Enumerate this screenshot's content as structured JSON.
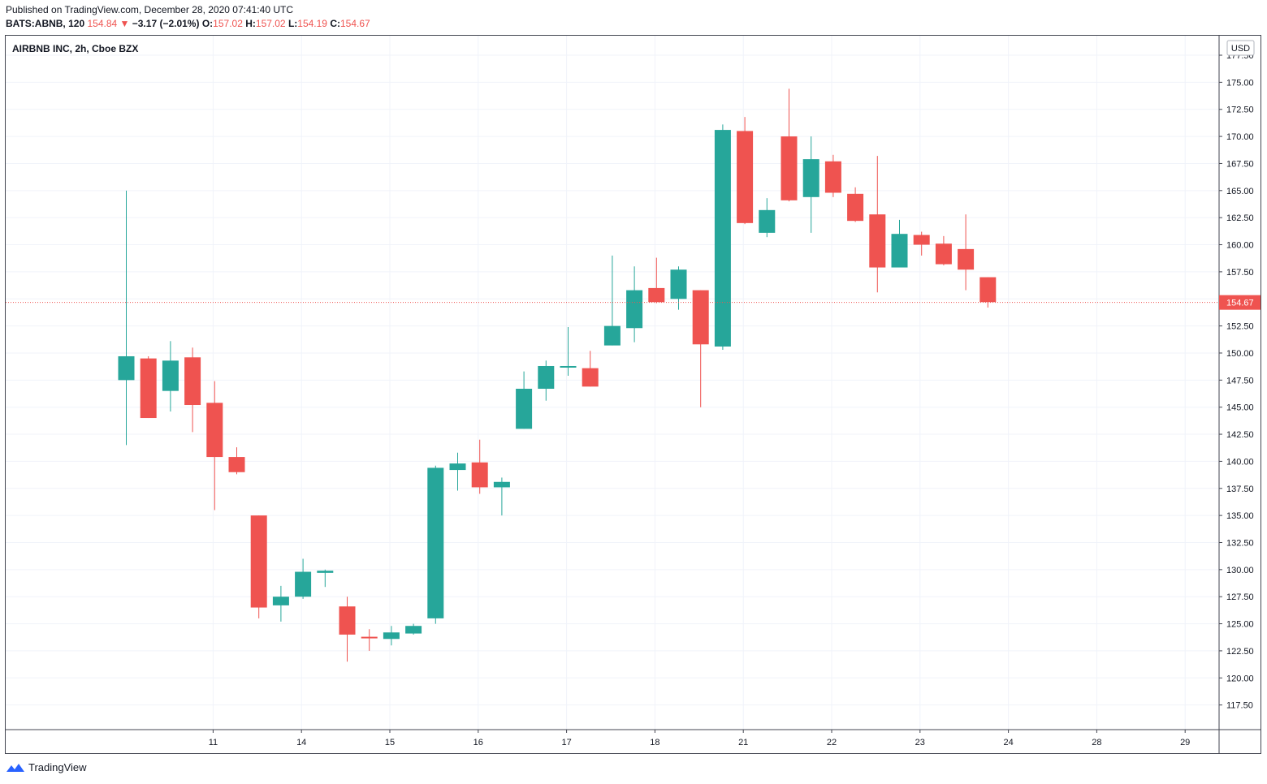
{
  "header": {
    "published": "Published on TradingView.com, December 28, 2020 07:41:40 UTC",
    "symbol": "BATS:ABNB, 120",
    "last": "154.84",
    "change": "−3.17 (−2.01%)",
    "o_label": "O:",
    "o_value": "157.02",
    "h_label": "H:",
    "h_value": "157.02",
    "l_label": "L:",
    "l_value": "154.19",
    "c_label": "C:",
    "c_value": "154.67"
  },
  "chart_title": "AIRBNB INC, 2h, Cboe BZX",
  "footer": {
    "brand": "TradingView"
  },
  "colors": {
    "up": "#26a69a",
    "down": "#ef5350",
    "grid": "#f0f3fa",
    "axis": "#131722",
    "border": "#434651"
  },
  "chart_data": {
    "type": "candlestick",
    "currency": "USD",
    "last_price_label": "154.67",
    "last_price": 154.67,
    "ylim": [
      115.3,
      179.3
    ],
    "y_ticks": [
      117.5,
      120,
      122.5,
      125,
      127.5,
      130,
      132.5,
      135,
      137.5,
      140,
      142.5,
      145,
      147.5,
      150,
      152.5,
      155,
      157.5,
      160,
      162.5,
      165,
      167.5,
      170,
      172.5,
      175,
      177.5
    ],
    "y_tick_labels": [
      "117.50",
      "120.00",
      "122.50",
      "125.00",
      "127.50",
      "130.00",
      "132.50",
      "135.00",
      "137.50",
      "140.00",
      "142.50",
      "145.00",
      "147.50",
      "150.00",
      "152.50",
      "155.00",
      "157.50",
      "160.00",
      "162.50",
      "165.00",
      "167.50",
      "170.00",
      "172.50",
      "175.00",
      "177.50"
    ],
    "x_ticks": [
      {
        "label": "11",
        "index": 2
      },
      {
        "label": "14",
        "index": 6
      },
      {
        "label": "15",
        "index": 10
      },
      {
        "label": "16",
        "index": 14
      },
      {
        "label": "17",
        "index": 18
      },
      {
        "label": "18",
        "index": 22
      },
      {
        "label": "21",
        "index": 26
      },
      {
        "label": "22",
        "index": 30
      },
      {
        "label": "23",
        "index": 34
      },
      {
        "label": "24",
        "index": 38
      },
      {
        "label": "28",
        "index": 42
      },
      {
        "label": "29",
        "index": 46
      }
    ],
    "candles": [
      {
        "o": 147.5,
        "h": 165.0,
        "l": 141.5,
        "c": 149.7
      },
      {
        "o": 149.5,
        "h": 149.7,
        "l": 144.0,
        "c": 144.0
      },
      {
        "o": 146.5,
        "h": 151.1,
        "l": 144.6,
        "c": 149.3
      },
      {
        "o": 149.6,
        "h": 150.5,
        "l": 142.7,
        "c": 145.2
      },
      {
        "o": 145.4,
        "h": 147.4,
        "l": 135.5,
        "c": 140.4
      },
      {
        "o": 140.4,
        "h": 141.3,
        "l": 138.8,
        "c": 139.0
      },
      {
        "o": 135.0,
        "h": 135.0,
        "l": 125.5,
        "c": 126.5
      },
      {
        "o": 126.7,
        "h": 128.5,
        "l": 125.2,
        "c": 127.5
      },
      {
        "o": 127.5,
        "h": 131.0,
        "l": 127.3,
        "c": 129.8
      },
      {
        "o": 129.7,
        "h": 130.0,
        "l": 128.4,
        "c": 129.9
      },
      {
        "o": 126.6,
        "h": 127.5,
        "l": 121.5,
        "c": 124.0
      },
      {
        "o": 123.8,
        "h": 124.5,
        "l": 122.5,
        "c": 123.7
      },
      {
        "o": 123.6,
        "h": 124.8,
        "l": 123.0,
        "c": 124.2
      },
      {
        "o": 124.1,
        "h": 125.0,
        "l": 124.0,
        "c": 124.8
      },
      {
        "o": 125.5,
        "h": 139.6,
        "l": 125.0,
        "c": 139.4
      },
      {
        "o": 139.2,
        "h": 140.8,
        "l": 137.3,
        "c": 139.8
      },
      {
        "o": 139.9,
        "h": 142.0,
        "l": 137.0,
        "c": 137.6
      },
      {
        "o": 137.6,
        "h": 138.5,
        "l": 135.0,
        "c": 138.1
      },
      {
        "o": 143.0,
        "h": 148.3,
        "l": 143.0,
        "c": 146.7
      },
      {
        "o": 146.7,
        "h": 149.3,
        "l": 145.6,
        "c": 148.8
      },
      {
        "o": 148.7,
        "h": 152.4,
        "l": 147.9,
        "c": 148.8
      },
      {
        "o": 148.6,
        "h": 150.2,
        "l": 146.9,
        "c": 146.9
      },
      {
        "o": 150.7,
        "h": 159.0,
        "l": 150.7,
        "c": 152.5
      },
      {
        "o": 152.3,
        "h": 158.0,
        "l": 151.0,
        "c": 155.8
      },
      {
        "o": 156.0,
        "h": 158.8,
        "l": 154.6,
        "c": 154.7
      },
      {
        "o": 155.0,
        "h": 158.0,
        "l": 154.0,
        "c": 157.7
      },
      {
        "o": 155.8,
        "h": 155.8,
        "l": 145.0,
        "c": 150.8
      },
      {
        "o": 150.6,
        "h": 171.1,
        "l": 150.3,
        "c": 170.6
      },
      {
        "o": 170.5,
        "h": 171.8,
        "l": 161.9,
        "c": 162.0
      },
      {
        "o": 161.1,
        "h": 164.3,
        "l": 160.7,
        "c": 163.2
      },
      {
        "o": 170.0,
        "h": 174.4,
        "l": 164.0,
        "c": 164.1
      },
      {
        "o": 164.4,
        "h": 170.0,
        "l": 161.1,
        "c": 167.9
      },
      {
        "o": 167.7,
        "h": 168.3,
        "l": 164.4,
        "c": 164.8
      },
      {
        "o": 164.7,
        "h": 165.3,
        "l": 162.1,
        "c": 162.2
      },
      {
        "o": 162.8,
        "h": 168.2,
        "l": 155.6,
        "c": 157.9
      },
      {
        "o": 157.9,
        "h": 162.3,
        "l": 157.9,
        "c": 161.0
      },
      {
        "o": 160.9,
        "h": 161.2,
        "l": 159.0,
        "c": 160.0
      },
      {
        "o": 160.1,
        "h": 160.8,
        "l": 158.1,
        "c": 158.2
      },
      {
        "o": 159.6,
        "h": 162.8,
        "l": 155.8,
        "c": 157.7
      },
      {
        "o": 157.0,
        "h": 157.0,
        "l": 154.2,
        "c": 154.7
      }
    ]
  }
}
